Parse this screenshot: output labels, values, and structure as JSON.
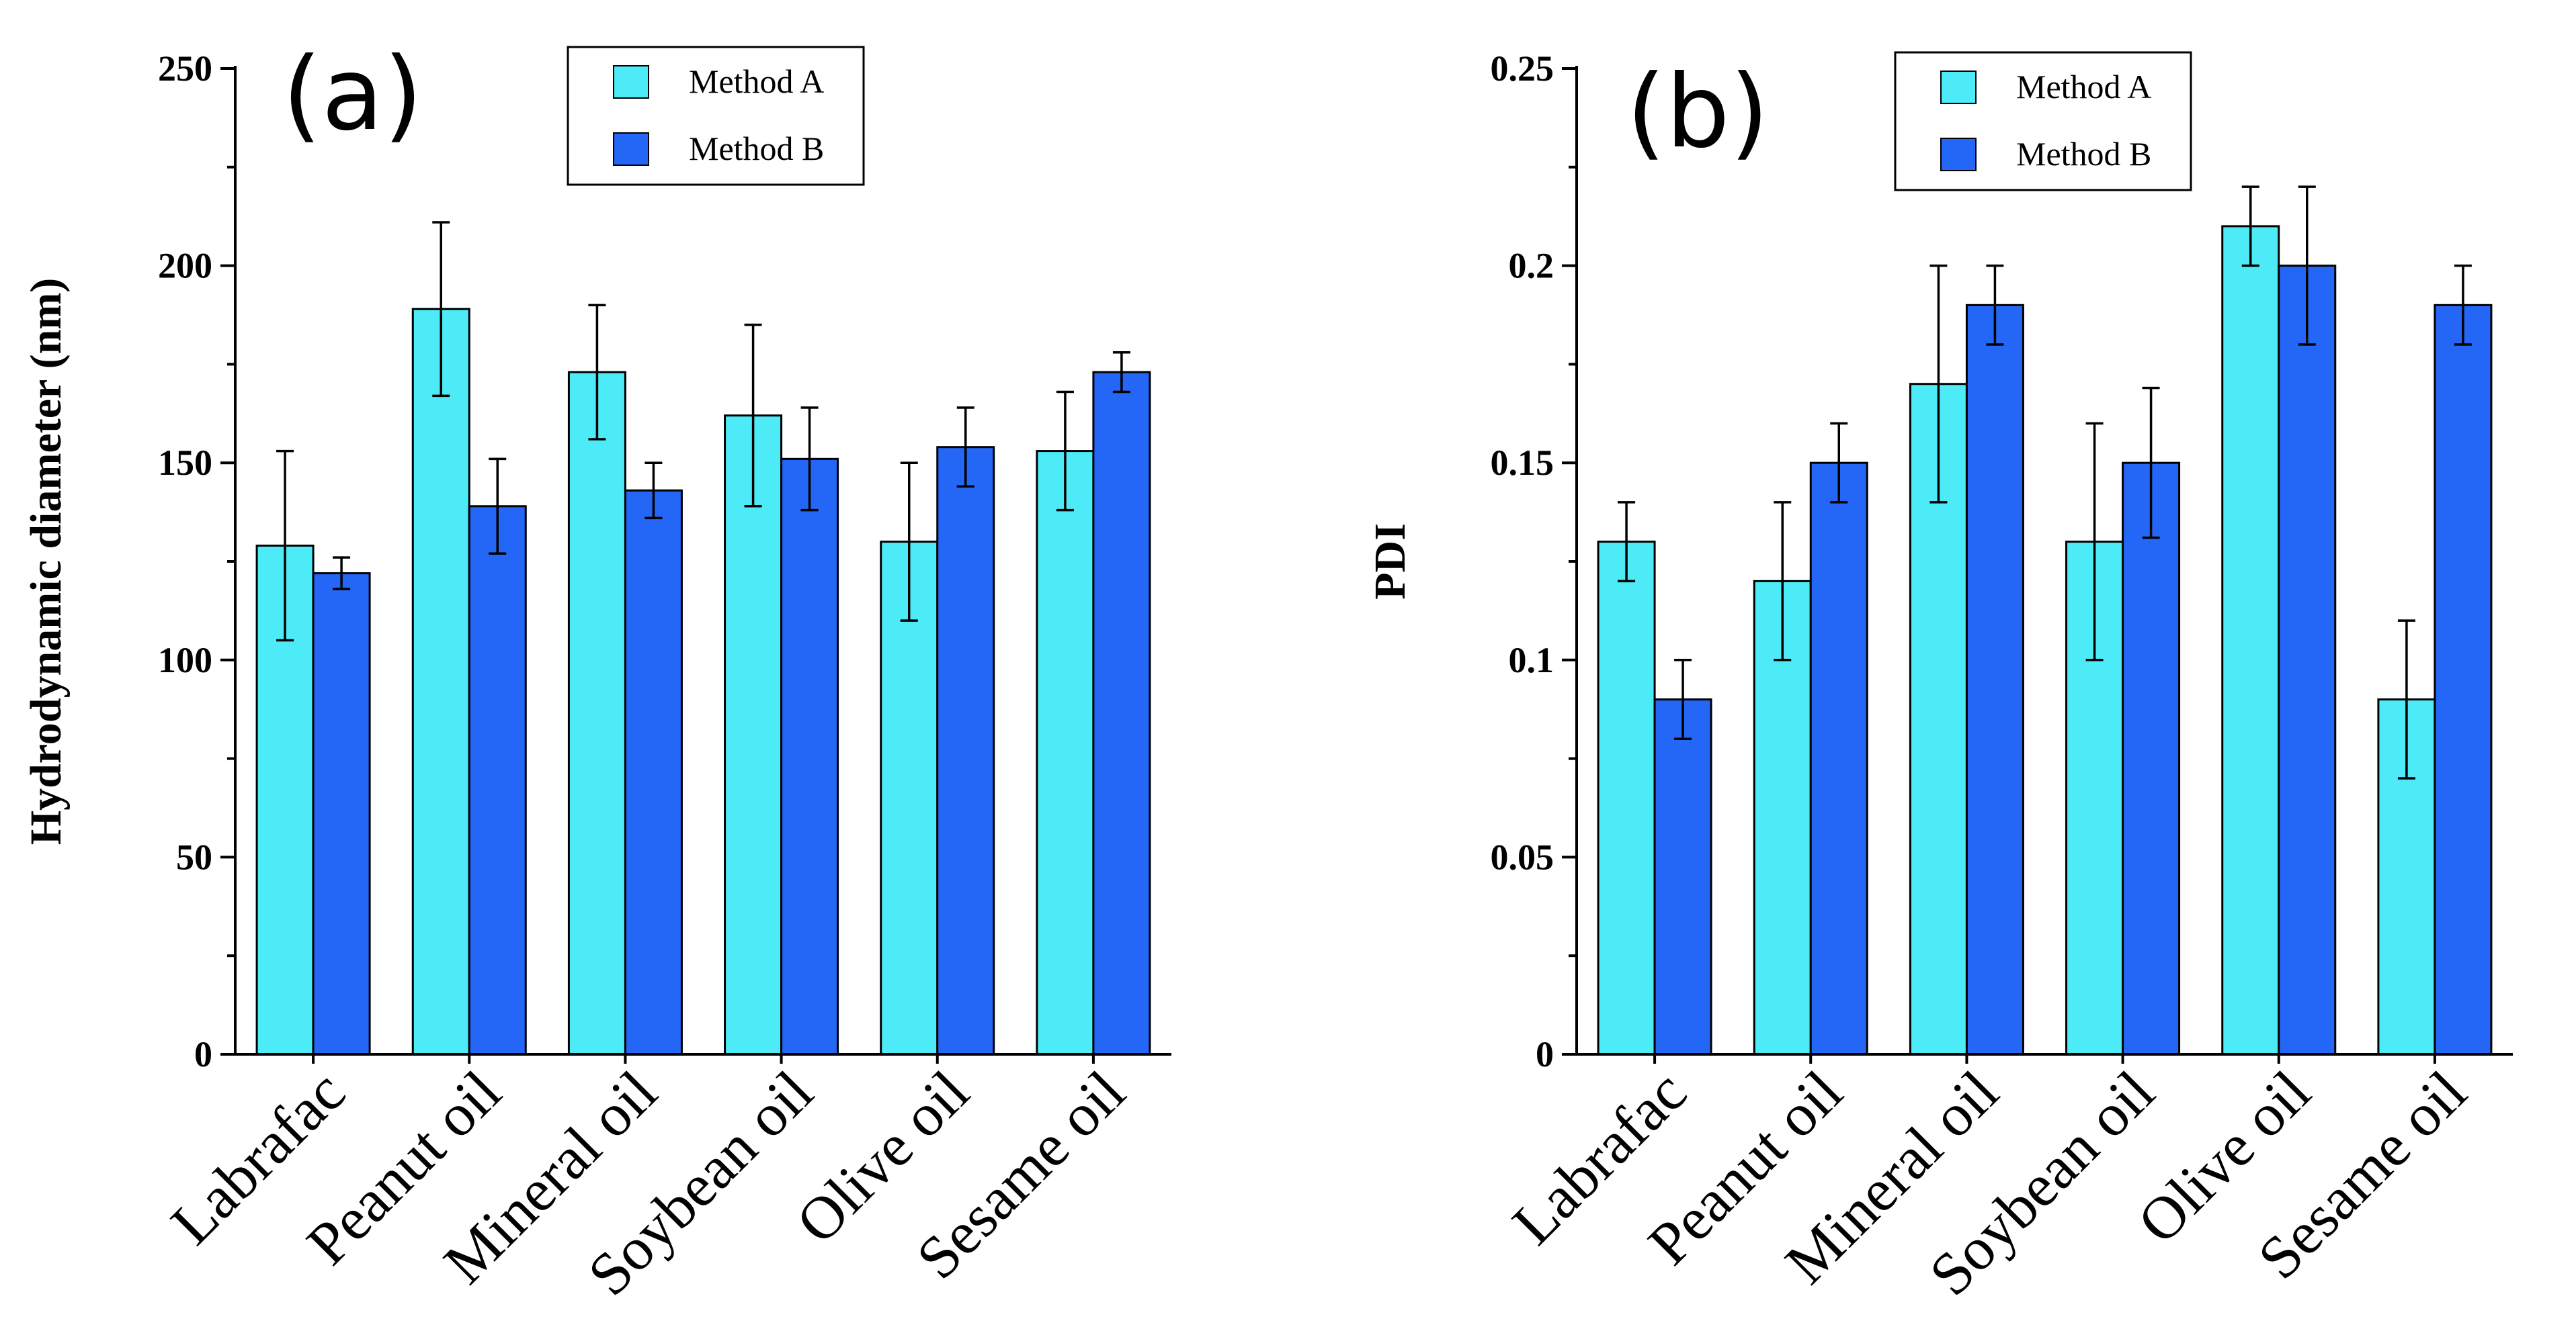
{
  "chart_data": [
    {
      "type": "bar",
      "panel_label": "(a)",
      "title": "",
      "xlabel": "",
      "ylabel": "Hydrodynamic diameter  (nm)",
      "ylim": [
        0,
        250
      ],
      "yticks": [
        0,
        50,
        100,
        150,
        200,
        250
      ],
      "ytick_labels": [
        "0",
        "50",
        "100",
        "150",
        "200",
        "250"
      ],
      "categories": [
        "Labrafac",
        "Peanut oil",
        "Mineral oil",
        "Soybean oil",
        "Olive oil",
        "Sesame oil"
      ],
      "legend_position": "top-right",
      "series": [
        {
          "name": "Method A",
          "color": "#4DEBF7",
          "values": [
            129,
            189,
            173,
            162,
            130,
            153
          ],
          "errors": [
            24,
            22,
            17,
            23,
            20,
            15
          ]
        },
        {
          "name": "Method B",
          "color": "#2466F5",
          "values": [
            122,
            139,
            143,
            151,
            154,
            173
          ],
          "errors": [
            4,
            12,
            7,
            13,
            10,
            5
          ]
        }
      ]
    },
    {
      "type": "bar",
      "panel_label": "(b)",
      "title": "",
      "xlabel": "",
      "ylabel": "PDI",
      "ylim": [
        0,
        0.25
      ],
      "yticks": [
        0,
        0.05,
        0.1,
        0.15,
        0.2,
        0.25
      ],
      "ytick_labels": [
        "0",
        "0.05",
        "0.1",
        "0.15",
        "0.2",
        "0.25"
      ],
      "categories": [
        "Labrafac",
        "Peanut oil",
        "Mineral oil",
        "Soybean oil",
        "Olive oil",
        "Sesame oil"
      ],
      "legend_position": "top-right",
      "series": [
        {
          "name": "Method A",
          "color": "#4DEBF7",
          "values": [
            0.13,
            0.12,
            0.17,
            0.13,
            0.21,
            0.09
          ],
          "errors": [
            0.01,
            0.02,
            0.03,
            0.03,
            0.01,
            0.02
          ]
        },
        {
          "name": "Method B",
          "color": "#2466F5",
          "values": [
            0.09,
            0.15,
            0.19,
            0.15,
            0.2,
            0.19
          ],
          "errors": [
            0.01,
            0.01,
            0.01,
            0.019,
            0.02,
            0.01
          ]
        }
      ]
    }
  ]
}
